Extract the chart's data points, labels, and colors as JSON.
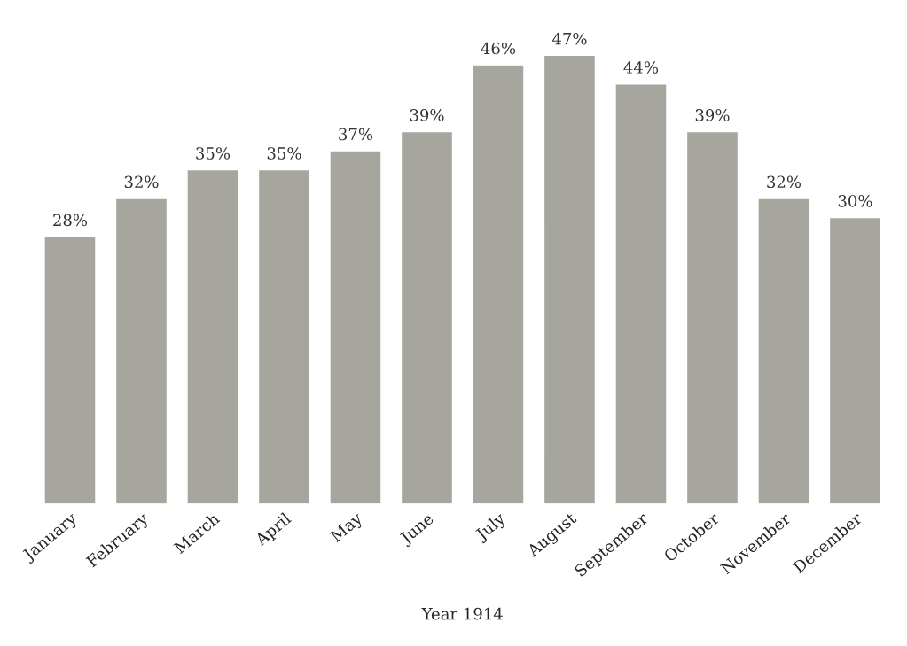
{
  "chart_data": {
    "type": "bar",
    "xlabel": "Year 1914",
    "categories": [
      "January",
      "February",
      "March",
      "April",
      "May",
      "June",
      "July",
      "August",
      "September",
      "October",
      "November",
      "December"
    ],
    "values": [
      28,
      32,
      35,
      35,
      37,
      39,
      46,
      47,
      44,
      39,
      32,
      30
    ],
    "value_labels": [
      "28%",
      "32%",
      "35%",
      "35%",
      "37%",
      "39%",
      "46%",
      "47%",
      "44%",
      "39%",
      "32%",
      "30%"
    ],
    "color": "#a6a69f",
    "grid": false
  }
}
